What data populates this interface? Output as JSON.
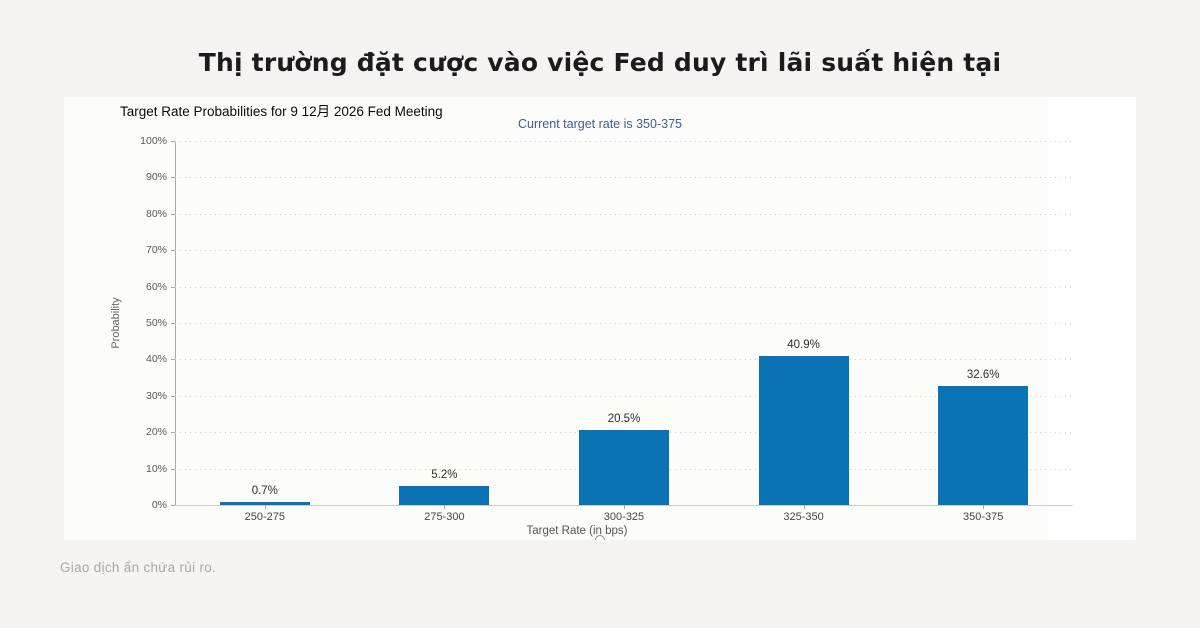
{
  "page": {
    "background_color": "#f5f4f2",
    "title": "Thị trường đặt cược vào việc Fed duy trì lãi suất hiện tại",
    "disclaimer": "Giao dịch ẩn chứa rủi ro."
  },
  "chart": {
    "heading": "Target Rate Probabilities for 9 12月 2026 Fed Meeting",
    "subtitle": "Current target rate is 350-375",
    "subtitle_color": "#3f5e8c"
  },
  "chart_data": {
    "type": "bar",
    "title": "Target Rate Probabilities for 9 12月 2026 Fed Meeting",
    "subtitle": "Current target rate is 350-375",
    "categories": [
      "250-275",
      "275-300",
      "300-325",
      "325-350",
      "350-375"
    ],
    "values": [
      0.7,
      5.2,
      20.5,
      40.9,
      32.6
    ],
    "value_labels": [
      "0.7%",
      "5.2%",
      "20.5%",
      "40.9%",
      "32.6%"
    ],
    "xlabel": "Target Rate (in bps)",
    "ylabel": "Probability",
    "ylim": [
      0,
      100
    ],
    "ytick_step": 10,
    "ytick_labels": [
      "0%",
      "10%",
      "20%",
      "30%",
      "40%",
      "50%",
      "60%",
      "70%",
      "80%",
      "90%",
      "100%"
    ],
    "bar_color": "#0b72b4",
    "grid": "dotted-horizontal",
    "legend": "none"
  }
}
